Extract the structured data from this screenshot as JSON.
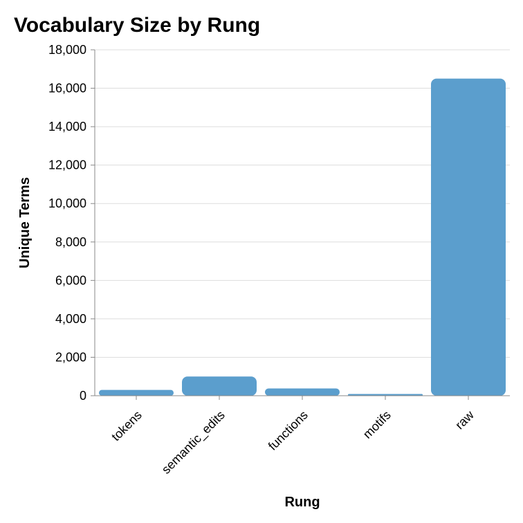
{
  "chart_data": {
    "type": "bar",
    "title": "Vocabulary Size by Rung",
    "xlabel": "Rung",
    "ylabel": "Unique Terms",
    "categories": [
      "tokens",
      "semantic_edits",
      "functions",
      "motifs",
      "raw"
    ],
    "values": [
      300,
      1000,
      380,
      90,
      16500
    ],
    "ylim": [
      0,
      18000
    ],
    "yticks": [
      0,
      2000,
      4000,
      6000,
      8000,
      10000,
      12000,
      14000,
      16000,
      18000
    ],
    "ytick_labels": [
      "0",
      "2,000",
      "4,000",
      "6,000",
      "8,000",
      "10,000",
      "12,000",
      "14,000",
      "16,000",
      "18,000"
    ],
    "grid": true,
    "bar_color": "#5b9ecd"
  }
}
